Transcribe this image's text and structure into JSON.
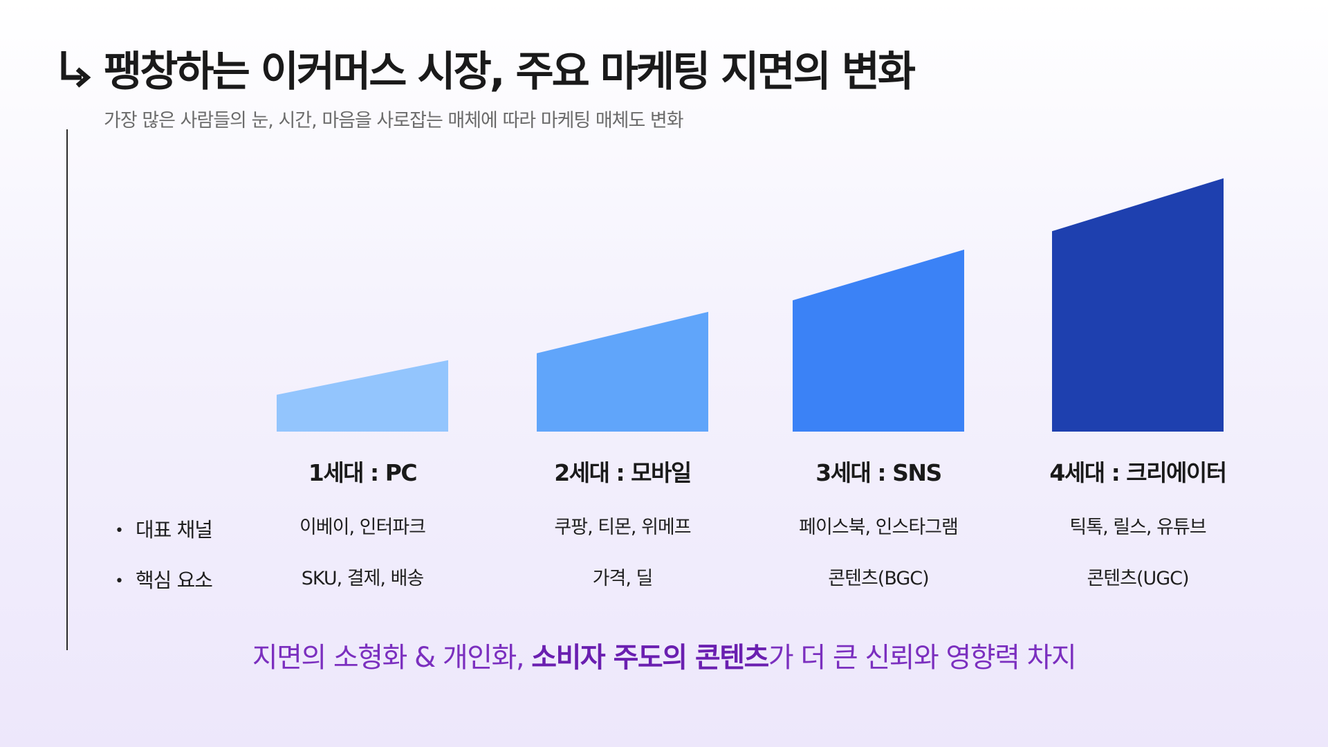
{
  "header": {
    "title": "팽창하는 이커머스 시장, 주요 마케팅 지면의 변화",
    "subtitle": "가장 많은 사람들의 눈, 시간, 마음을 사로잡는 매체에 따라 마케팅 매체도 변화"
  },
  "row_labels": {
    "channel": "대표 채널",
    "core": "핵심 요소",
    "bullet": "•"
  },
  "generations": [
    {
      "label": "1세대 : PC",
      "channel": "이베이, 인터파크",
      "core": "SKU, 결제, 배송",
      "color": "#93c5fd",
      "level_start": 0.16,
      "level_end": 0.31
    },
    {
      "label": "2세대 : 모바일",
      "channel": "쿠팡, 티몬, 위메프",
      "core": "가격, 딜",
      "color": "#60a5fa",
      "level_start": 0.34,
      "level_end": 0.52
    },
    {
      "label": "3세대 : SNS",
      "channel": "페이스북, 인스타그램",
      "core": "콘텐츠(BGC)",
      "color": "#3b82f6",
      "level_start": 0.57,
      "level_end": 0.79
    },
    {
      "label": "4세대 : 크리에이터",
      "channel": "틱톡, 릴스, 유튜브",
      "core": "콘텐츠(UGC)",
      "color": "#1e40af",
      "level_start": 0.87,
      "level_end": 1.1
    }
  ],
  "footer": {
    "part1": "지면의 소형화 & 개인화, ",
    "highlight": "소비자 주도의 콘텐츠",
    "part2": "가 더 큰 신뢰와 영향력 차지"
  },
  "colors": {
    "accent": "#7b2fbf",
    "highlight": "#6a1fb0"
  },
  "icons": {
    "title_icon": "arrow-down-right-icon"
  }
}
